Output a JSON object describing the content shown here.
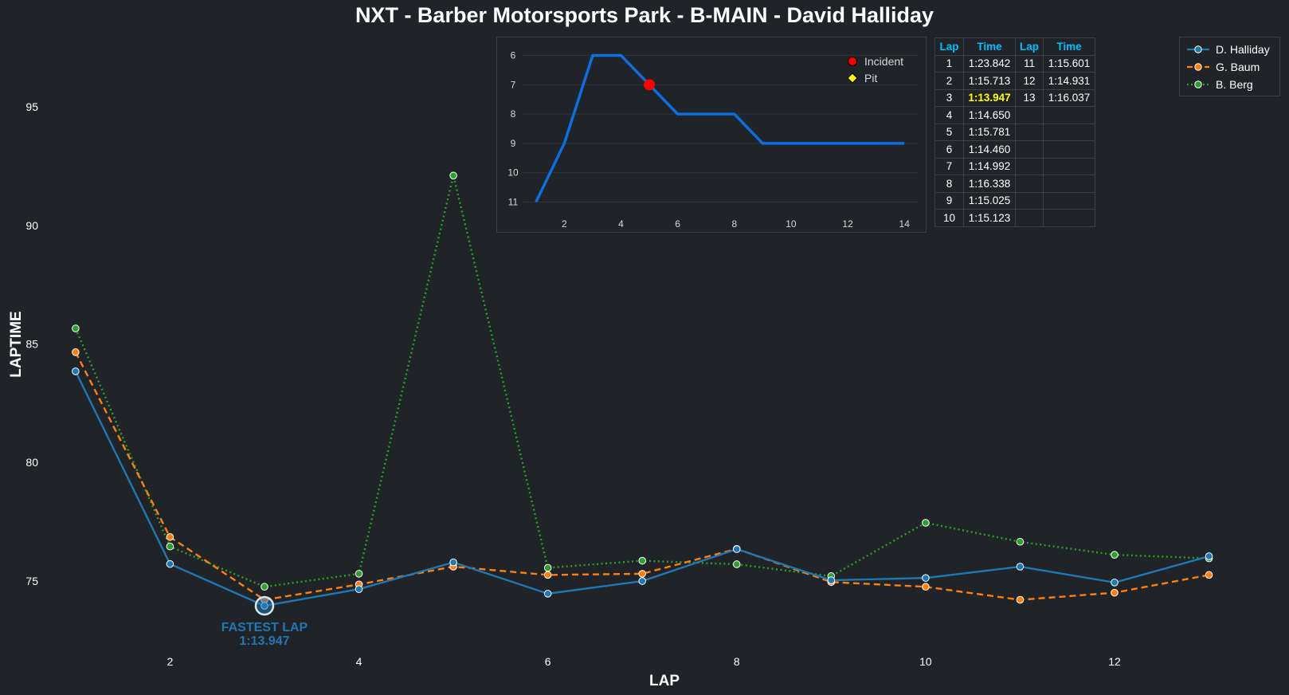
{
  "title": "NXT - Barber Motorsports Park - B-MAIN - David Halliday",
  "colors": {
    "background": "#202327",
    "halliday": "#1f77b4",
    "baum": "#ff7f0e",
    "berg": "#2ca02c",
    "position_line": "#0a6fe0",
    "incident": "#ff0000",
    "pit": "#ffff00",
    "table_header": "#00bfff",
    "table_best": "#ffff00"
  },
  "chart_data": [
    {
      "type": "line",
      "title": "NXT - Barber Motorsports Park - B-MAIN - David Halliday",
      "xlabel": "LAP",
      "ylabel": "LAPTIME",
      "x": [
        1,
        2,
        3,
        4,
        5,
        6,
        7,
        8,
        9,
        10,
        11,
        12,
        13
      ],
      "xlim": [
        0.2,
        13.4
      ],
      "ylim": [
        72.0,
        98.5
      ],
      "x_ticks": [
        2,
        4,
        6,
        8,
        10,
        12
      ],
      "y_ticks": [
        75,
        80,
        85,
        90,
        95
      ],
      "grid": false,
      "legend_position": "top-right",
      "series": [
        {
          "name": "D. Halliday",
          "style": "solid",
          "values": [
            83.842,
            75.713,
            73.947,
            74.65,
            75.781,
            74.46,
            74.992,
            76.338,
            75.025,
            75.123,
            75.601,
            74.931,
            76.037
          ]
        },
        {
          "name": "G. Baum",
          "style": "dashed",
          "values": [
            84.65,
            76.85,
            74.2,
            74.85,
            75.6,
            75.25,
            75.3,
            76.35,
            74.95,
            74.75,
            74.2,
            74.5,
            75.25
          ]
        },
        {
          "name": "B. Berg",
          "style": "dotted",
          "values": [
            85.65,
            76.45,
            74.75,
            75.3,
            92.1,
            75.55,
            75.85,
            75.7,
            75.2,
            77.45,
            76.65,
            76.1,
            75.95
          ]
        }
      ],
      "annotation": {
        "label": "FASTEST LAP",
        "value": "1:13.947",
        "x": 3,
        "y": 73.947
      }
    },
    {
      "type": "line",
      "title": "",
      "x": [
        1,
        2,
        3,
        4,
        5,
        6,
        7,
        8,
        9,
        10,
        11,
        12,
        13,
        14
      ],
      "values": [
        11,
        9,
        6,
        6,
        7,
        8,
        8,
        8,
        9,
        9,
        9,
        9,
        9,
        9
      ],
      "xlim": [
        0.5,
        14.5
      ],
      "ylim": [
        11.15,
        5.55
      ],
      "y_inverted": true,
      "x_ticks": [
        2,
        4,
        6,
        8,
        10,
        12,
        14
      ],
      "y_ticks": [
        6,
        7,
        8,
        9,
        10,
        11
      ],
      "grid": true,
      "legend_position": "top-right",
      "legend": [
        {
          "name": "Incident",
          "marker": "circle"
        },
        {
          "name": "Pit",
          "marker": "diamond"
        }
      ],
      "incidents": [
        {
          "x": 5,
          "y": 7
        }
      ],
      "pits": []
    }
  ],
  "table": {
    "headers": [
      "Lap",
      "Time",
      "Lap",
      "Time"
    ],
    "rows": [
      [
        "1",
        "1:23.842",
        "11",
        "1:15.601"
      ],
      [
        "2",
        "1:15.713",
        "12",
        "1:14.931"
      ],
      [
        "3",
        "1:13.947",
        "13",
        "1:16.037"
      ],
      [
        "4",
        "1:14.650",
        "",
        ""
      ],
      [
        "5",
        "1:15.781",
        "",
        ""
      ],
      [
        "6",
        "1:14.460",
        "",
        ""
      ],
      [
        "7",
        "1:14.992",
        "",
        ""
      ],
      [
        "8",
        "1:16.338",
        "",
        ""
      ],
      [
        "9",
        "1:15.025",
        "",
        ""
      ],
      [
        "10",
        "1:15.123",
        "",
        ""
      ]
    ],
    "best_lap": "1:13.947"
  }
}
